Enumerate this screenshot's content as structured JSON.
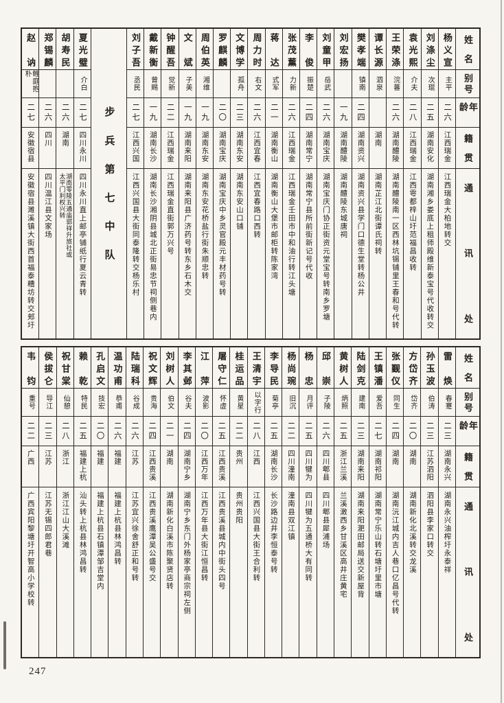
{
  "page": {
    "number": "247"
  },
  "unit_title": "步兵第七中队",
  "colors": {
    "paper": "#f7f5ef",
    "ink": "#24211c",
    "border": "#2b2722"
  },
  "column_headers": {
    "name": "姓名",
    "alias": "别号",
    "age": "年龄",
    "native": "籍贯",
    "address": "通讯处"
  },
  "roster_top": {
    "right_of_title": [
      {
        "name": "杨义宣",
        "alias": "主平",
        "age": "二六",
        "native": "江西瑞金",
        "address": "江西瑞金大柏地转交"
      },
      {
        "name": "刘涤尘",
        "alias": "次琨",
        "age": "二五",
        "native": "湖南安化",
        "address": "湖南湘乡娄底上租师殿维新泰宝号代收转交"
      },
      {
        "name": "袁光熙",
        "alias": "介夫",
        "age": "二八",
        "native": "江西瑞金",
        "address": "江西雩都梓山圩范福昌收转"
      },
      {
        "name": "王荣涤",
        "alias": "浣蕃",
        "age": "二六",
        "native": "湖南醴陵",
        "address": "湖南醴陵南一区西林坑锡铺里王春和号代转"
      },
      {
        "name": "谭长源",
        "alias": "泗泉",
        "age": "",
        "native": "湖南",
        "address": "湖南芷江北街谭氏祠转"
      },
      {
        "name": "樊孝端",
        "alias": "镇南",
        "age": "二四",
        "native": "湖南资兴",
        "address": "湖南资兴县学门口德生堂转杨公井"
      },
      {
        "name": "刘宏扬",
        "alias": "",
        "age": "一九",
        "native": "湖南醴陵",
        "address": "湖南醴陵东城唐祠"
      },
      {
        "name": "刘童甲",
        "alias": "岳武",
        "age": "二六",
        "native": "湖南宝庆",
        "address": "湖南宝庆门协正街资元堂宝号转南乡罗塘"
      },
      {
        "name": "李俊",
        "alias": "振楚",
        "age": "二四",
        "native": "湖南常宁",
        "address": "湖南常宁县所前街新记号代收"
      },
      {
        "name": "张茂薰",
        "alias": "力新",
        "age": "二六",
        "native": "江西瑞金",
        "address": "江西瑞金壬田市中和油行转江头塘"
      },
      {
        "name": "蒋达",
        "alias": "式军",
        "age": "二一",
        "native": "湖南衡山",
        "address": "湖南衡山大堡市邮柜转陈家湾"
      },
      {
        "name": "周力时",
        "alias": "右文",
        "age": "二六",
        "native": "江西宜春",
        "address": "江西宜春路口西转"
      },
      {
        "name": "文博学",
        "alias": "孤舟",
        "age": "二三",
        "native": "湖南东安",
        "address": "湖南东安山口铺"
      },
      {
        "name": "罗麒麟",
        "alias": "",
        "age": "二〇",
        "native": "湖南宝庆",
        "address": "湖南宝庆中乡灵官殿元丰材药号转"
      },
      {
        "name": "周伯英",
        "alias": "湘维",
        "age": "一九",
        "native": "湖南东安",
        "address": "湖南东安花桥盐行街朱顺忠转"
      },
      {
        "name": "文斌",
        "alias": "子美",
        "age": "一九",
        "native": "湖南来阳",
        "address": "湖南来阳县广济药号转东乡石木交"
      },
      {
        "name": "钟醒吾",
        "alias": "觉新",
        "age": "二二",
        "native": "江西瑞金",
        "address": "江西瑞金直街郭万兴号"
      },
      {
        "name": "戴新衡",
        "alias": "曾赐",
        "age": "一九",
        "native": "湖南长沙",
        "address": "湖南长沙湘阴县城北正街易忠节祠侧巷内"
      },
      {
        "name": "刘子吾",
        "alias": "丞民",
        "age": "二七",
        "native": "江西兴国",
        "address": "江西兴国县大街同泰隆转交杨乐村"
      }
    ],
    "left_of_title": [
      {
        "name": "夏光璧",
        "alias": "介白",
        "age": "二七",
        "native": "四川永川",
        "address": "四川永川直上邮亭铺纸行夏云青转"
      },
      {
        "name": "胡寿民",
        "alias": "",
        "age": "二六",
        "native": "湖南",
        "address": "湖南零陵五通庙郭祥升旅社或太平门利权兴转",
        "address_small": true
      },
      {
        "name": "郑锡麟",
        "alias": "",
        "age": "二六",
        "native": "四川",
        "address": "四川温江县文家场"
      },
      {
        "name": "赵讷",
        "alias": "鲤庭抱朴",
        "age": "二七",
        "native": "安徽宿县",
        "address": "安徽宿县濉溪镇大街西首福泰糟坊转交郏圩"
      }
    ]
  },
  "roster_bottom": {
    "people": [
      {
        "name": "雷焕",
        "alias": "春蹇",
        "age": "二三",
        "native": "湖南永兴",
        "address": "湖南永兴油榨圩永泰祥"
      },
      {
        "name": "孙玉波",
        "alias": "伯涛",
        "age": "二三",
        "native": "江苏泗阳",
        "address": "泗阳县李家口转交"
      },
      {
        "name": "方岱齐",
        "alias": "岱齐",
        "age": "二〇",
        "native": "湖南",
        "address": "湖南新化北溪转交龙溪"
      },
      {
        "name": "张觐仪",
        "alias": "同生",
        "age": "二四",
        "native": "湖南",
        "address": "湖南沅江城内吉人巷口亿昌号代转"
      },
      {
        "name": "王镇潘",
        "alias": "爱吾",
        "age": "二七",
        "native": "湖南祁阳",
        "address": "湖南常宁乐山转石塘圩里市塘"
      },
      {
        "name": "陆剑克",
        "alias": "建南",
        "age": "二三",
        "native": "湖南来阳",
        "address": "湖南来阳淝田邮局送交新屋背"
      },
      {
        "name": "黄树人",
        "alias": "炳照",
        "age": "二五",
        "native": "浙江兰溪",
        "address": "兰溪潄西乡甘溪区高井庄黄宅"
      },
      {
        "name": "邱崇",
        "alias": "子陵",
        "age": "二六",
        "native": "四川郫县",
        "address": "四川郫县犀浦场"
      },
      {
        "name": "杨忠",
        "alias": "月评",
        "age": "二五",
        "native": "四川犍为",
        "address": "四川犍为五通桥大有同转"
      },
      {
        "name": "杨尚琬",
        "alias": "旧沉",
        "age": "二二",
        "native": "四川潼南",
        "address": "潼南县双江镇"
      },
      {
        "name": "李导民",
        "alias": "菊亭",
        "age": "二五",
        "native": "湖南长沙",
        "address": "长沙路边井李恒泰号转"
      },
      {
        "name": "王清宇",
        "alias": "以字行",
        "age": "二八",
        "native": "江西",
        "address": "江西兴国县大街王合利转"
      },
      {
        "name": "桂运品",
        "alias": "黄星",
        "age": "二二",
        "native": "贵州",
        "address": "贵州贵阳"
      },
      {
        "name": "屠守仁",
        "alias": "怀虚",
        "age": "二五",
        "native": "江西贵溪",
        "address": "江西贵溪县城内中街头四号"
      },
      {
        "name": "江萍",
        "alias": "波影",
        "age": "二〇",
        "native": "江西万年",
        "address": "江西万年县大街江恒昌转"
      },
      {
        "name": "李其邺",
        "alias": "谷夫",
        "age": "二四",
        "native": "湖南宁乡",
        "address": "湖南宁乡东门外杨家亭商宗祠左侧"
      },
      {
        "name": "刘树人",
        "alias": "伯文",
        "age": "二一",
        "native": "湖南",
        "address": "湖南新化白溪市陈聚贤店转"
      },
      {
        "name": "祝文辉",
        "alias": "贵海",
        "age": "二四",
        "native": "江西贵溪",
        "address": "江西贵溪鹰潭吴公盛号交"
      },
      {
        "name": "陆瑞科",
        "alias": "谷成",
        "age": "二六",
        "native": "江苏",
        "address": "江苏宜兴徐舍舒正和号转"
      },
      {
        "name": "温功甫",
        "alias": "恭甫",
        "age": "二六",
        "native": "福建",
        "address": "福建上杭县林鸿昌转"
      },
      {
        "name": "孔启文",
        "alias": "技宏",
        "age": "二〇",
        "native": "福建",
        "address": "福建上杭县石镇潭邹吉堂内"
      },
      {
        "name": "赖乾",
        "alias": "特民",
        "age": "二五",
        "native": "福建上杭",
        "address": "汕头转上杭县林鸿昌转"
      },
      {
        "name": "祝甘棠",
        "alias": "仙憩",
        "age": "二八",
        "native": "浙江",
        "address": "浙江江山大溪滩"
      },
      {
        "name": "侯拔仑",
        "alias": "导江",
        "age": "二三",
        "native": "江苏",
        "address": "江苏无锡四郎君巷"
      },
      {
        "name": "韦钧",
        "alias": "重号",
        "age": "二二",
        "native": "广西",
        "address": "广西宾阳黎塘圩开智高小学校转"
      }
    ]
  }
}
